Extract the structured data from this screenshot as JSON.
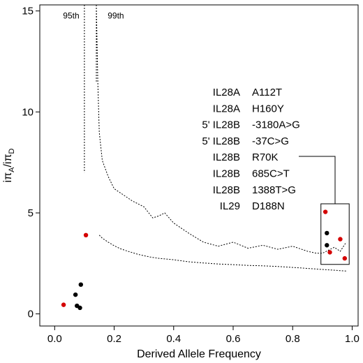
{
  "chart_data": {
    "type": "scatter",
    "title": "",
    "xlabel": "Derived Allele Frequency",
    "ylabel": "iπA/iπD",
    "ylabel_parts": {
      "main": "iπ",
      "sub1": "A",
      "slash": "/iπ",
      "sub2": "D"
    },
    "xlim": [
      -0.05,
      1.02
    ],
    "ylim": [
      -0.6,
      15.3
    ],
    "x_ticks": [
      0.0,
      0.2,
      0.4,
      0.6,
      0.8,
      1.0
    ],
    "x_tick_labels": [
      "0.0",
      "0.2",
      "0.4",
      "0.6",
      "0.8",
      "1.0"
    ],
    "y_ticks": [
      0,
      5,
      10,
      15
    ],
    "y_tick_labels": [
      "0",
      "5",
      "10",
      "15"
    ],
    "grid": false,
    "colors": {
      "red": "#d40000",
      "black": "#000000"
    },
    "threshold_curves": [
      {
        "name": "95th",
        "x": [
          0.15,
          0.16,
          0.18,
          0.2,
          0.22,
          0.25,
          0.28,
          0.3,
          0.32,
          0.35,
          0.4,
          0.45,
          0.5,
          0.55,
          0.6,
          0.65,
          0.7,
          0.75,
          0.8,
          0.85,
          0.9,
          0.95,
          0.98
        ],
        "y": [
          3.9,
          3.75,
          3.55,
          3.38,
          3.23,
          3.08,
          2.95,
          2.88,
          2.82,
          2.75,
          2.68,
          2.58,
          2.52,
          2.47,
          2.44,
          2.4,
          2.38,
          2.35,
          2.3,
          2.25,
          2.2,
          2.15,
          2.12
        ]
      },
      {
        "name": "99th",
        "x": [
          0.14,
          0.145,
          0.15,
          0.16,
          0.18,
          0.2,
          0.23,
          0.26,
          0.3,
          0.33,
          0.35,
          0.37,
          0.4,
          0.45,
          0.5,
          0.55,
          0.6,
          0.65,
          0.7,
          0.75,
          0.8,
          0.85,
          0.88,
          0.9,
          0.92,
          0.94,
          0.96,
          0.98
        ],
        "y": [
          15.3,
          11.5,
          9.0,
          7.6,
          6.8,
          6.2,
          5.9,
          5.6,
          5.3,
          4.75,
          4.85,
          5.0,
          4.5,
          4.0,
          3.55,
          3.35,
          3.55,
          3.25,
          3.4,
          3.2,
          3.35,
          3.1,
          3.0,
          3.0,
          3.15,
          3.3,
          3.1,
          3.55
        ]
      }
    ],
    "vertical_tails": [
      {
        "name": "95th",
        "x": [
          0.1,
          0.1
        ],
        "y": [
          15.3,
          7.0
        ]
      },
      {
        "name": "99th",
        "x": [
          0.14,
          0.14
        ],
        "y": [
          15.3,
          11.5
        ]
      }
    ],
    "points": [
      {
        "x": 0.03,
        "y": 0.45,
        "color": "red"
      },
      {
        "x": 0.07,
        "y": 0.95,
        "color": "black"
      },
      {
        "x": 0.075,
        "y": 0.4,
        "color": "black"
      },
      {
        "x": 0.085,
        "y": 0.3,
        "color": "black"
      },
      {
        "x": 0.088,
        "y": 1.45,
        "color": "black"
      },
      {
        "x": 0.105,
        "y": 3.9,
        "color": "red"
      },
      {
        "x": 0.91,
        "y": 5.05,
        "color": "red"
      },
      {
        "x": 0.915,
        "y": 4.0,
        "color": "black"
      },
      {
        "x": 0.915,
        "y": 3.4,
        "color": "black"
      },
      {
        "x": 0.925,
        "y": 3.05,
        "color": "red"
      },
      {
        "x": 0.96,
        "y": 3.7,
        "color": "red"
      },
      {
        "x": 0.975,
        "y": 2.75,
        "color": "red"
      }
    ],
    "highlight_box": {
      "x": [
        0.895,
        0.99
      ],
      "y": [
        2.45,
        5.45
      ]
    },
    "annotations": {
      "curve_labels": [
        {
          "text": "95th",
          "x": 0.0,
          "y": 14.9
        },
        {
          "text": "99th",
          "x": 0.15,
          "y": 14.9
        }
      ],
      "variants": [
        {
          "gene": "IL28A",
          "change": "A112T"
        },
        {
          "gene": "IL28A",
          "change": "H160Y"
        },
        {
          "gene": "5' IL28B",
          "change": "-3180A>G"
        },
        {
          "gene": "5' IL28B",
          "change": "-37C>G"
        },
        {
          "gene": "IL28B",
          "change": "R70K"
        },
        {
          "gene": "IL28B",
          "change": "685C>T"
        },
        {
          "gene": "IL28B",
          "change": "1388T>G"
        },
        {
          "gene": "IL29",
          "change": "D188N"
        }
      ]
    }
  }
}
